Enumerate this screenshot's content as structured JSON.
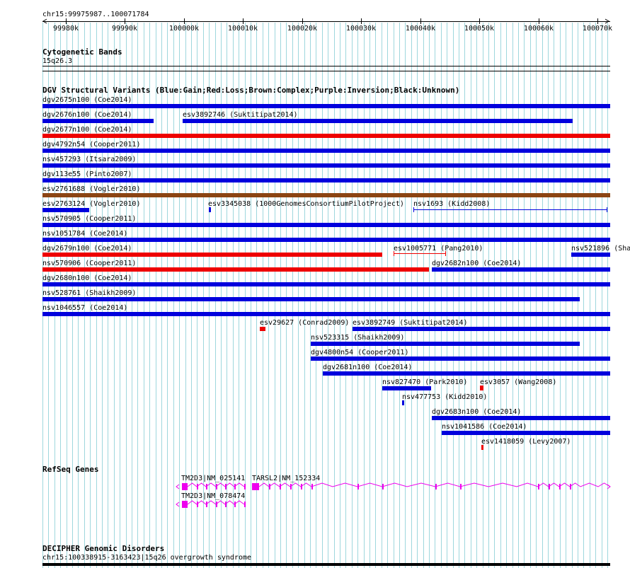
{
  "ruler": {
    "position": "chr15:99975987..100071784",
    "ticks": [
      "99980k",
      "99990k",
      "100000k",
      "100010k",
      "100020k",
      "100030k",
      "100040k",
      "100050k",
      "100060k",
      "100070k"
    ]
  },
  "cytoband": {
    "title": "Cytogenetic Bands",
    "band": "15q26.3"
  },
  "dgv": {
    "title": "DGV Structural Variants (Blue:Gain;Red:Loss;Brown:Complex;Purple:Inversion;Black:Unknown)",
    "colors": {
      "gain": "#0000dd",
      "loss": "#ee0000",
      "complex": "#8b4513",
      "unknown": "#000000"
    },
    "features": [
      {
        "label": "dgv2675n100 (Coe2014)",
        "type": "gain"
      },
      {
        "label": "dgv2676n100 (Coe2014)",
        "type": "gain"
      },
      {
        "label": "esv3892746 (Suktitipat2014)",
        "type": "gain"
      },
      {
        "label": "dgv2677n100 (Coe2014)",
        "type": "loss"
      },
      {
        "label": "dgv4792n54 (Cooper2011)",
        "type": "gain"
      },
      {
        "label": "nsv457293 (Itsara2009)",
        "type": "gain"
      },
      {
        "label": "dgv113e55 (Pinto2007)",
        "type": "gain"
      },
      {
        "label": "esv2761688 (Vogler2010)",
        "type": "complex"
      },
      {
        "label": "esv2763124 (Vogler2010)",
        "type": "gain"
      },
      {
        "label": "esv3345038 (1000GenomesConsortiumPilotProject)",
        "type": "gain"
      },
      {
        "label": "nsv1693 (Kidd2008)",
        "type": "gain"
      },
      {
        "label": "nsv570905 (Cooper2011)",
        "type": "gain"
      },
      {
        "label": "nsv1051784 (Coe2014)",
        "type": "gain"
      },
      {
        "label": "dgv2679n100 (Coe2014)",
        "type": "loss"
      },
      {
        "label": "esv1005771 (Pang2010)",
        "type": "loss"
      },
      {
        "label": "nsv521896 (Sha",
        "type": "gain"
      },
      {
        "label": "nsv570906 (Cooper2011)",
        "type": "loss"
      },
      {
        "label": "dgv2682n100 (Coe2014)",
        "type": "gain"
      },
      {
        "label": "dgv2680n100 (Coe2014)",
        "type": "gain"
      },
      {
        "label": "nsv528761 (Shaikh2009)",
        "type": "gain"
      },
      {
        "label": "nsv1046557 (Coe2014)",
        "type": "gain"
      },
      {
        "label": "esv29627 (Conrad2009)",
        "type": "loss"
      },
      {
        "label": "esv3892749 (Suktitipat2014)",
        "type": "gain"
      },
      {
        "label": "nsv523315 (Shaikh2009)",
        "type": "gain"
      },
      {
        "label": "dgv4800n54 (Cooper2011)",
        "type": "gain"
      },
      {
        "label": "dgv2681n100 (Coe2014)",
        "type": "gain"
      },
      {
        "label": "nsv827470 (Park2010)",
        "type": "gain"
      },
      {
        "label": "esv3057 (Wang2008)",
        "type": "loss"
      },
      {
        "label": "nsv477753 (Kidd2010)",
        "type": "gain"
      },
      {
        "label": "dgv2683n100 (Coe2014)",
        "type": "gain"
      },
      {
        "label": "nsv1041586 (Coe2014)",
        "type": "gain"
      },
      {
        "label": "esv1418059 (Levy2007)",
        "type": "loss"
      }
    ]
  },
  "refseq": {
    "title": "RefSeq Genes",
    "color": "#ee00ee",
    "transcripts": [
      "TM2D3|NM_025141",
      "TARSL2|NM_152334",
      "TM2D3|NM_078474"
    ]
  },
  "decipher": {
    "title": "DECIPHER Genomic Disorders",
    "feature": "chr15:100338915-3163423|15q26 overgrowth syndrome"
  }
}
